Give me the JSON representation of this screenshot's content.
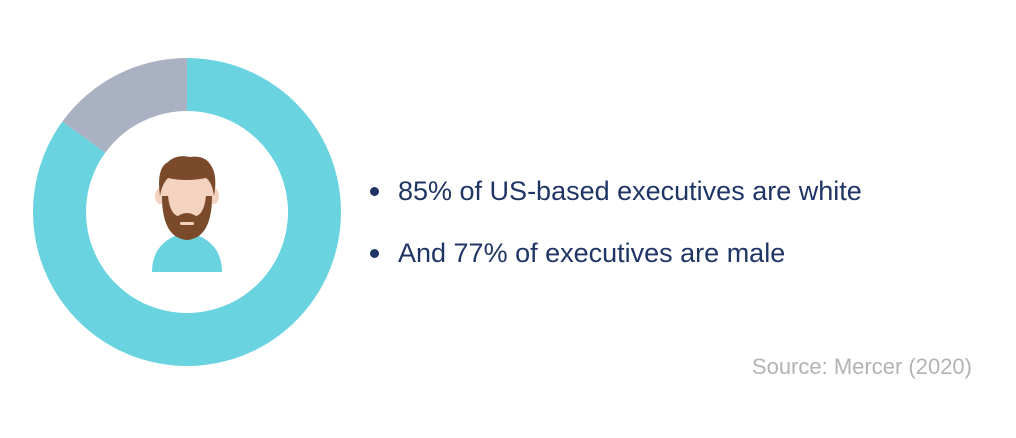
{
  "chart_data": {
    "type": "pie",
    "donut": true,
    "categories": [
      "",
      ""
    ],
    "values": [
      85,
      15
    ],
    "colors": [
      "#6ad3e0",
      "#aab1c2"
    ],
    "start_angle_deg": 0,
    "center_icon": "bearded-man-avatar-icon",
    "title": "",
    "legend": false
  },
  "bullets": [
    {
      "text": "85% of US-based executives are white"
    },
    {
      "text": "And 77% of executives are male"
    }
  ],
  "source": "Source: Mercer (2020)",
  "colors": {
    "text": "#1f3566",
    "source": "#b3b3b3",
    "hair": "#7a4a2a",
    "skin": "#f3d3bf",
    "shirt": "#6ad3e0"
  }
}
